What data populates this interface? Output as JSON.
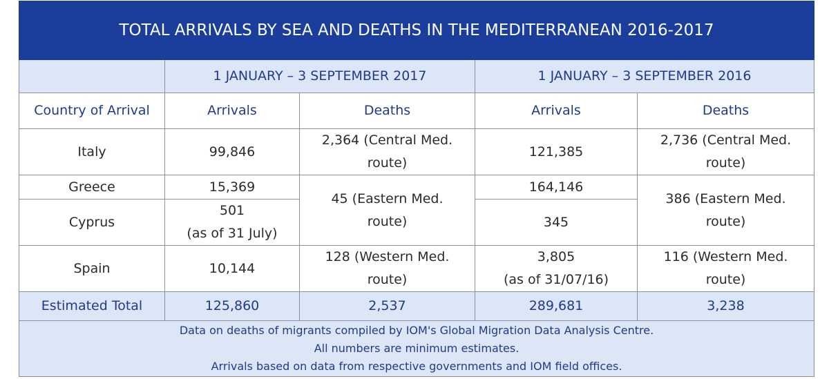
{
  "title": "TOTAL ARRIVALS BY SEA AND DEATHS IN THE MEDITERRANEAN 2016-2017",
  "periods": [
    "1 JANUARY – 3 SEPTEMBER 2017",
    "1 JANUARY – 3 SEPTEMBER 2016"
  ],
  "columns": [
    "Country of Arrival",
    "Arrivals",
    "Deaths",
    "Arrivals",
    "Deaths"
  ],
  "rows": [
    {
      "country": "Italy",
      "arrivals_2017": [
        "99,846"
      ],
      "deaths_2017": [
        "2,364 (Central Med.",
        "route)"
      ],
      "arrivals_2016": [
        "121,385"
      ],
      "deaths_2016": [
        "2,736 (Central Med.",
        "route)"
      ]
    },
    {
      "country": "Greece",
      "arrivals_2017": [
        "15,369"
      ],
      "deaths_2017": [
        "45 (Eastern Med.",
        "route)"
      ],
      "arrivals_2016": [
        "164,146"
      ],
      "deaths_2016": [
        "386 (Eastern Med.",
        "route)"
      ]
    },
    {
      "country": "Cyprus",
      "arrivals_2017": [
        "501",
        "(as of 31 July)"
      ],
      "arrivals_2016": [
        "345"
      ]
    },
    {
      "country": "Spain",
      "arrivals_2017": [
        "10,144"
      ],
      "deaths_2017": [
        "128 (Western Med.",
        "route)"
      ],
      "arrivals_2016": [
        "3,805",
        "(as of 31/07/16)"
      ],
      "deaths_2016": [
        "116 (Western Med.",
        "route)"
      ]
    }
  ],
  "total": {
    "label": "Estimated Total",
    "arrivals_2017": "125,860",
    "deaths_2017": "2,537",
    "arrivals_2016": "289,681",
    "deaths_2016": "3,238"
  },
  "footnotes": [
    "Data on deaths of migrants compiled by IOM's Global Migration Data Analysis Centre.",
    "All numbers are minimum estimates.",
    "Arrivals based on data from respective governments and IOM field offices."
  ]
}
